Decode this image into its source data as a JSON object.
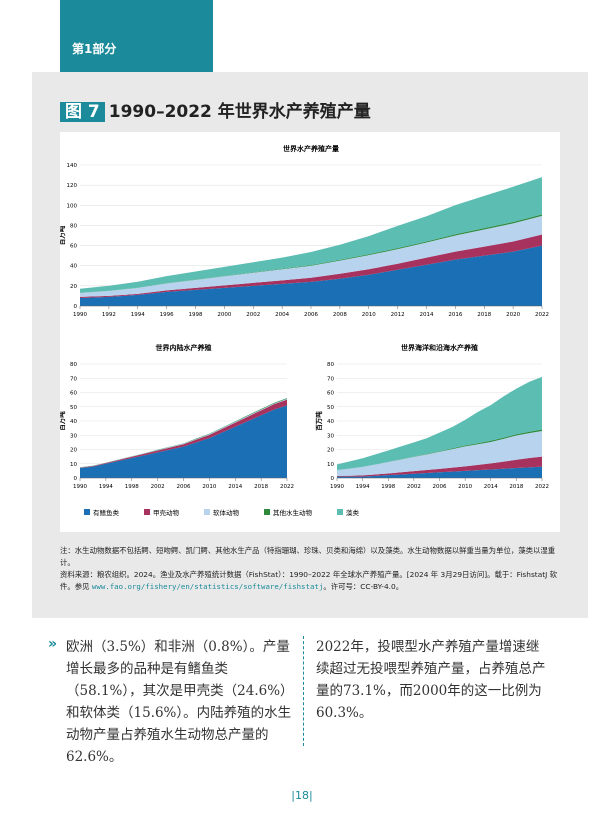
{
  "header": {
    "section": "第1部分"
  },
  "figure": {
    "number": "图 7",
    "title": "1990–2022 年世界水产养殖产量"
  },
  "chart_data": [
    {
      "type": "area",
      "title": "世界水产养殖产量",
      "ylabel": "百万吨",
      "x": [
        1990,
        1992,
        1994,
        1996,
        1998,
        2000,
        2002,
        2004,
        2006,
        2008,
        2010,
        2012,
        2014,
        2016,
        2018,
        2020,
        2022
      ],
      "xlim": [
        1990,
        2022
      ],
      "xticks": [
        1990,
        1992,
        1994,
        1996,
        1998,
        2000,
        2002,
        2004,
        2006,
        2008,
        2010,
        2012,
        2014,
        2016,
        2018,
        2020,
        2022
      ],
      "ylim": [
        0,
        140
      ],
      "yticks": [
        0,
        20,
        40,
        60,
        80,
        100,
        120,
        140
      ],
      "grid": true,
      "series": [
        {
          "name": "有鳍鱼类",
          "color": "#1a6fb5",
          "values": [
            8,
            9,
            11,
            14,
            16,
            18,
            20,
            22,
            24,
            27,
            31,
            36,
            41,
            46,
            50,
            54,
            60
          ]
        },
        {
          "name": "甲壳动物",
          "color": "#a8325e",
          "values": [
            1,
            1,
            1,
            1.5,
            2,
            2.5,
            3,
            3.5,
            4,
            5,
            5.5,
            6,
            7,
            8,
            9,
            10,
            11
          ]
        },
        {
          "name": "软体动物",
          "color": "#b7d3ee",
          "values": [
            4,
            5,
            6,
            7,
            8,
            9,
            10,
            11,
            12,
            13,
            14,
            14.5,
            15,
            16,
            17,
            18,
            18.5
          ]
        },
        {
          "name": "其他水生动物",
          "color": "#2e8b3e",
          "values": [
            0.1,
            0.1,
            0.1,
            0.2,
            0.2,
            0.3,
            0.4,
            0.5,
            0.6,
            0.8,
            0.9,
            1,
            1.1,
            1.2,
            1.3,
            1.4,
            1.5
          ]
        },
        {
          "name": "藻类",
          "color": "#5cbdb3",
          "values": [
            4,
            5,
            6,
            7,
            8,
            9,
            10,
            11,
            13,
            15,
            18,
            22,
            25,
            29,
            32,
            35,
            37
          ]
        }
      ]
    },
    {
      "type": "area",
      "title": "世界内陆水产养殖",
      "ylabel": "百万吨",
      "x": [
        1990,
        1992,
        1994,
        1996,
        1998,
        2000,
        2002,
        2004,
        2006,
        2008,
        2010,
        2012,
        2014,
        2016,
        2018,
        2020,
        2022
      ],
      "xlim": [
        1990,
        2022
      ],
      "xticks": [
        1990,
        1994,
        1998,
        2002,
        2006,
        2010,
        2014,
        2018,
        2022
      ],
      "ylim": [
        0,
        80
      ],
      "yticks": [
        0,
        10,
        20,
        30,
        40,
        50,
        60,
        70,
        80
      ],
      "grid": true,
      "series": [
        {
          "color": "#1a6fb5",
          "values": [
            7,
            8,
            10,
            12,
            14,
            16,
            18,
            20,
            22,
            25,
            28,
            32,
            36,
            40,
            44,
            48,
            51
          ]
        },
        {
          "color": "#a8325e",
          "values": [
            0.3,
            0.4,
            0.5,
            0.7,
            0.9,
            1.1,
            1.3,
            1.5,
            1.7,
            2,
            2.3,
            2.6,
            2.9,
            3.2,
            3.5,
            3.8,
            4
          ]
        },
        {
          "color": "#b7d3ee",
          "values": [
            0.1,
            0.1,
            0.1,
            0.2,
            0.2,
            0.2,
            0.3,
            0.3,
            0.3,
            0.4,
            0.4,
            0.4,
            0.5,
            0.5,
            0.5,
            0.5,
            0.5
          ]
        },
        {
          "color": "#2e8b3e",
          "values": [
            0.1,
            0.1,
            0.1,
            0.1,
            0.1,
            0.1,
            0.2,
            0.2,
            0.2,
            0.3,
            0.3,
            0.3,
            0.3,
            0.4,
            0.4,
            0.4,
            0.5
          ]
        },
        {
          "color": "#5cbdb3",
          "values": [
            0.1,
            0.1,
            0.1,
            0.1,
            0.1,
            0.1,
            0.1,
            0.1,
            0.1,
            0.1,
            0.1,
            0.1,
            0.1,
            0.1,
            0.1,
            0.1,
            0.1
          ]
        }
      ]
    },
    {
      "type": "area",
      "title": "世界海洋和沿海水产养殖",
      "ylabel": "百万吨",
      "x": [
        1990,
        1992,
        1994,
        1996,
        1998,
        2000,
        2002,
        2004,
        2006,
        2008,
        2010,
        2012,
        2014,
        2016,
        2018,
        2020,
        2022
      ],
      "xlim": [
        1990,
        2022
      ],
      "xticks": [
        1990,
        1994,
        1998,
        2002,
        2006,
        2010,
        2014,
        2018,
        2022
      ],
      "ylim": [
        0,
        80
      ],
      "yticks": [
        0,
        10,
        20,
        30,
        40,
        50,
        60,
        70,
        80
      ],
      "grid": true,
      "series": [
        {
          "color": "#1a6fb5",
          "values": [
            1,
            1,
            1,
            1.5,
            2,
            2.5,
            3,
            3.5,
            4,
            4.5,
            5,
            5.5,
            6,
            6.5,
            7,
            7.5,
            8
          ]
        },
        {
          "color": "#a8325e",
          "values": [
            0.5,
            0.6,
            0.8,
            1,
            1.2,
            1.5,
            1.8,
            2.1,
            2.4,
            2.8,
            3.2,
            3.7,
            4.3,
            5,
            5.8,
            6.5,
            7
          ]
        },
        {
          "color": "#b7d3ee",
          "values": [
            4,
            5,
            6,
            7,
            8,
            9,
            10,
            11,
            12,
            13,
            14,
            14.5,
            15,
            16,
            17,
            17.5,
            18
          ]
        },
        {
          "color": "#2e8b3e",
          "values": [
            0.1,
            0.1,
            0.1,
            0.1,
            0.1,
            0.2,
            0.2,
            0.3,
            0.4,
            0.5,
            0.6,
            0.7,
            0.8,
            0.8,
            0.9,
            1,
            1
          ]
        },
        {
          "color": "#5cbdb3",
          "values": [
            4,
            5,
            6,
            7,
            8,
            9,
            10,
            11,
            13,
            15,
            18,
            22,
            25,
            29,
            32,
            35,
            37
          ]
        }
      ]
    }
  ],
  "notes": {
    "note": "注：水生动物数据不包括鳄、短吻鳄、凯门鳄、其他水生产品（特指珊瑚、珍珠、贝类和海绵）以及藻类。水生动物数据以鲜重当量为单位，藻类以湿重计。",
    "source_prefix": "资料来源：粮农组织。2024。渔业及水产养殖统计数据（FishStat）：1990–2022 年全球水产养殖产量。[2024 年 3月29日访问]。载于：FishstatJ 软件。参见 ",
    "source_url": "www.fao.org/fishery/en/statistics/software/fishstatj",
    "source_suffix": "。许可号：CC-BY-4.0。"
  },
  "body": {
    "marker": "»",
    "left": "欧洲（3.5%）和非洲（0.8%）。产量增长最多的品种是有鳍鱼类（58.1%），其次是甲壳类（24.6%）和软体类（15.6%）。内陆养殖的水生动物产量占养殖水生动物总产量的62.6%。",
    "right": "2022年，投喂型水产养殖产量增速继续超过无投喂型养殖产量，占养殖总产量的73.1%，而2000年的这一比例为60.3%。"
  },
  "page_number": "|18|"
}
